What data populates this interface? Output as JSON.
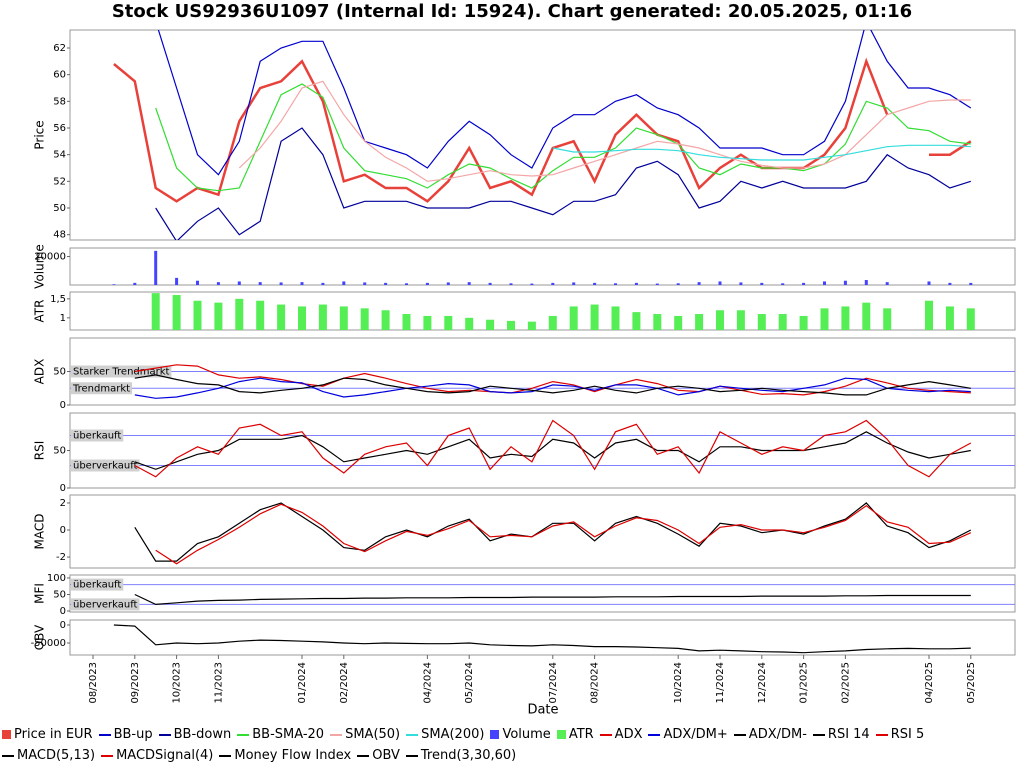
{
  "title": "Stock US92936U1097 (Internal Id: 15924). Chart generated: 20.05.2025, 01:16",
  "x_label": "Date",
  "categories": [
    "08/2023",
    null,
    "09/2023",
    null,
    "10/2023",
    null,
    "11/2023",
    null,
    null,
    null,
    "01/2024",
    null,
    "02/2024",
    null,
    null,
    null,
    "04/2024",
    null,
    "05/2024",
    null,
    null,
    null,
    "07/2024",
    null,
    "08/2024",
    null,
    null,
    null,
    "10/2024",
    null,
    "11/2024",
    null,
    "12/2024",
    null,
    "01/2025",
    null,
    "02/2025",
    null,
    null,
    null,
    "04/2025",
    null,
    "05/2025"
  ],
  "chart_data": [
    {
      "type": "line",
      "ylabel": "Price",
      "ylim": [
        47.6,
        63.35
      ],
      "yticks": [
        48,
        50,
        52,
        54,
        56,
        58,
        60,
        62
      ],
      "series": [
        {
          "name": "Price in EUR",
          "color": "#e8413a",
          "values": [
            null,
            60.8,
            59.5,
            51.5,
            50.5,
            51.5,
            51,
            56.5,
            59,
            59.5,
            61,
            58,
            52,
            52.5,
            51.5,
            51.5,
            50.5,
            52,
            54.5,
            51.5,
            52,
            51,
            54.5,
            55,
            52,
            55.5,
            57,
            55.5,
            55,
            51.5,
            53,
            54,
            53,
            53,
            53,
            54,
            56,
            61,
            57,
            null,
            54,
            54,
            55
          ]
        },
        {
          "name": "BB-up",
          "color": "#0000cc",
          "values": [
            null,
            null,
            null,
            64,
            59,
            54,
            52.5,
            55,
            61,
            62,
            62.5,
            62.5,
            59,
            55,
            54.5,
            54,
            53,
            55,
            56.5,
            55.5,
            54,
            53,
            56,
            57,
            57,
            58,
            58.5,
            57.5,
            57,
            56,
            54.5,
            54.5,
            54.5,
            54,
            54,
            55,
            58,
            64,
            61,
            59,
            59,
            58.5,
            57.5
          ]
        },
        {
          "name": "BB-down",
          "color": "#000099",
          "values": [
            null,
            null,
            null,
            50,
            47.5,
            49,
            50,
            48,
            49,
            55,
            56,
            54,
            50,
            50.5,
            50.5,
            50.5,
            50,
            50,
            50,
            50.5,
            50.5,
            50,
            49.5,
            50.5,
            50.5,
            51,
            53,
            53.5,
            52.5,
            50,
            50.5,
            52,
            51.5,
            52,
            51.5,
            51.5,
            51.5,
            52,
            54,
            53,
            52.5,
            51.5,
            52
          ]
        },
        {
          "name": "BB-SMA-20",
          "color": "#33dd33",
          "values": [
            null,
            null,
            null,
            57.5,
            53,
            51.5,
            51.3,
            51.5,
            55,
            58.5,
            59.3,
            58.3,
            54.5,
            52.8,
            52.5,
            52.2,
            51.5,
            52.5,
            53.3,
            53,
            52.2,
            51.5,
            52.8,
            53.8,
            53.8,
            54.5,
            56,
            55.5,
            54.8,
            53,
            52.5,
            53.3,
            53,
            53,
            52.8,
            53.3,
            54.8,
            58,
            57.5,
            56,
            55.8,
            55,
            54.8
          ]
        },
        {
          "name": "SMA(50)",
          "color": "#f4a6a6",
          "values": [
            null,
            null,
            null,
            null,
            null,
            null,
            null,
            53,
            54.5,
            56.5,
            59,
            59.5,
            57,
            55,
            53.8,
            53,
            52,
            52.2,
            52.5,
            52.8,
            52.5,
            52.4,
            52.5,
            53,
            53.5,
            54,
            54.5,
            55,
            54.8,
            54.5,
            54,
            53.5,
            53.2,
            53,
            53,
            53.3,
            54,
            55.5,
            57,
            57.5,
            58,
            58.1,
            58.1
          ]
        },
        {
          "name": "SMA(200)",
          "color": "#33dddd",
          "values": [
            null,
            null,
            null,
            null,
            null,
            null,
            null,
            null,
            null,
            null,
            null,
            null,
            null,
            null,
            null,
            null,
            null,
            null,
            null,
            null,
            null,
            null,
            54.5,
            54.2,
            54.2,
            54.3,
            54.4,
            54.4,
            54.3,
            54,
            53.8,
            53.7,
            53.6,
            53.6,
            53.6,
            53.8,
            54,
            54.3,
            54.6,
            54.7,
            54.7,
            54.7,
            54.6
          ]
        }
      ]
    },
    {
      "type": "bar",
      "ylabel": "Volume",
      "ylim": [
        0,
        26000
      ],
      "yticks": [
        20000
      ],
      "series": [
        {
          "name": "Volume",
          "color": "#4444ff",
          "values": [
            null,
            500,
            1500,
            24000,
            5000,
            3000,
            2000,
            2500,
            2000,
            1800,
            2000,
            1500,
            2500,
            1800,
            1500,
            1200,
            1500,
            1800,
            2000,
            1500,
            1200,
            1000,
            1500,
            1800,
            1500,
            1200,
            1500,
            1000,
            1200,
            2000,
            2500,
            1800,
            1500,
            1200,
            1500,
            2500,
            3000,
            3500,
            2000,
            null,
            2500,
            1500,
            1500
          ]
        }
      ]
    },
    {
      "type": "bar",
      "ylabel": "ATR",
      "ylim": [
        0.68,
        1.68
      ],
      "yticks": [
        1,
        {
          "value": 1.5,
          "label": "1,5"
        }
      ],
      "series": [
        {
          "name": "ATR",
          "color": "#55ee55",
          "values": [
            null,
            null,
            null,
            1.65,
            1.6,
            1.45,
            1.4,
            1.5,
            1.45,
            1.35,
            1.3,
            1.35,
            1.3,
            1.25,
            1.2,
            1.1,
            1.05,
            1.05,
            1.0,
            0.95,
            0.92,
            0.9,
            1.05,
            1.3,
            1.35,
            1.3,
            1.15,
            1.1,
            1.05,
            1.1,
            1.2,
            1.2,
            1.1,
            1.1,
            1.05,
            1.25,
            1.3,
            1.4,
            1.25,
            null,
            1.45,
            1.3,
            1.25
          ]
        }
      ]
    },
    {
      "type": "line",
      "ylabel": "ADX",
      "ylim": [
        0,
        100
      ],
      "yticks": [
        0,
        50
      ],
      "annotations": [
        {
          "text": "Starker Trendmarkt",
          "y": 50
        },
        {
          "text": "Trendmarkt",
          "y": 25
        }
      ],
      "series": [
        {
          "name": "ADX",
          "color": "#dd0000",
          "values": [
            null,
            null,
            50,
            55,
            60,
            58,
            45,
            40,
            42,
            38,
            32,
            28,
            40,
            47,
            40,
            32,
            25,
            20,
            22,
            20,
            18,
            25,
            35,
            30,
            20,
            30,
            38,
            32,
            22,
            20,
            28,
            22,
            16,
            17,
            15,
            20,
            28,
            40,
            33,
            25,
            22,
            20,
            18
          ]
        },
        {
          "name": "ADX/DM+",
          "color": "#0000dd",
          "values": [
            null,
            null,
            15,
            10,
            12,
            18,
            25,
            35,
            40,
            35,
            33,
            20,
            12,
            15,
            20,
            25,
            28,
            32,
            30,
            20,
            18,
            20,
            30,
            28,
            22,
            30,
            30,
            25,
            15,
            20,
            28,
            25,
            22,
            20,
            25,
            30,
            40,
            38,
            25,
            22,
            20,
            22,
            20
          ]
        },
        {
          "name": "ADX/DM-",
          "color": "#000000",
          "values": [
            null,
            null,
            40,
            45,
            38,
            32,
            30,
            20,
            18,
            22,
            25,
            30,
            40,
            38,
            30,
            25,
            20,
            18,
            20,
            28,
            25,
            22,
            18,
            22,
            28,
            22,
            18,
            25,
            28,
            25,
            20,
            22,
            25,
            22,
            20,
            18,
            15,
            15,
            25,
            30,
            35,
            30,
            25
          ]
        }
      ]
    },
    {
      "type": "line",
      "ylabel": "RSI",
      "ylim": [
        0,
        100
      ],
      "yticks": [
        0,
        50
      ],
      "annotations": [
        {
          "text": "überkauft",
          "y": 70
        },
        {
          "text": "überverkauft",
          "y": 30
        }
      ],
      "series": [
        {
          "name": "RSI 14",
          "color": "#000000",
          "values": [
            null,
            null,
            35,
            25,
            35,
            45,
            50,
            65,
            65,
            65,
            70,
            55,
            35,
            40,
            45,
            50,
            45,
            55,
            65,
            40,
            45,
            42,
            65,
            60,
            40,
            60,
            65,
            50,
            50,
            35,
            55,
            55,
            50,
            50,
            50,
            55,
            60,
            75,
            60,
            48,
            40,
            45,
            50
          ]
        },
        {
          "name": "RSI 5",
          "color": "#dd0000",
          "values": [
            null,
            null,
            30,
            15,
            40,
            55,
            45,
            80,
            85,
            70,
            75,
            40,
            20,
            45,
            55,
            60,
            30,
            70,
            80,
            25,
            55,
            35,
            90,
            70,
            25,
            75,
            85,
            45,
            55,
            20,
            75,
            60,
            45,
            55,
            50,
            70,
            75,
            90,
            65,
            30,
            15,
            45,
            60
          ]
        }
      ]
    },
    {
      "type": "line",
      "ylabel": "MACD",
      "ylim": [
        -2.81,
        2.59
      ],
      "yticks": [
        -2,
        0,
        2
      ],
      "series": [
        {
          "name": "MACD(5,13)",
          "color": "#000000",
          "values": [
            null,
            null,
            0.2,
            -2.3,
            -2.3,
            -1,
            -0.5,
            0.5,
            1.5,
            2,
            1,
            0,
            -1.3,
            -1.5,
            -0.5,
            0,
            -0.5,
            0.3,
            0.8,
            -0.8,
            -0.3,
            -0.5,
            0.5,
            0.5,
            -0.8,
            0.5,
            1,
            0.5,
            -0.3,
            -1.2,
            0.5,
            0.3,
            -0.2,
            0,
            -0.3,
            0.3,
            0.8,
            2,
            0.3,
            -0.2,
            -1.3,
            -0.8,
            0
          ]
        },
        {
          "name": "MACDSignal(4)",
          "color": "#dd0000",
          "values": [
            null,
            null,
            null,
            -1.5,
            -2.5,
            -1.5,
            -0.7,
            0.2,
            1.2,
            1.9,
            1.3,
            0.3,
            -1,
            -1.6,
            -0.8,
            -0.1,
            -0.4,
            0.1,
            0.7,
            -0.5,
            -0.4,
            -0.5,
            0.3,
            0.6,
            -0.5,
            0.3,
            0.9,
            0.7,
            0,
            -1,
            0.2,
            0.4,
            0,
            0,
            -0.2,
            0.2,
            0.7,
            1.8,
            0.6,
            0.2,
            -1,
            -0.9,
            -0.2
          ]
        }
      ]
    },
    {
      "type": "line",
      "ylabel": "MFI",
      "ylim": [
        -3,
        109
      ],
      "yticks": [
        0,
        50,
        100
      ],
      "annotations": [
        {
          "text": "überkauft",
          "y": 80
        },
        {
          "text": "überverkauft",
          "y": 20
        }
      ],
      "series": [
        {
          "name": "Money Flow Index",
          "color": "#000000",
          "values": [
            null,
            null,
            50,
            20,
            25,
            30,
            32,
            33,
            35,
            36,
            37,
            38,
            38,
            39,
            39,
            40,
            40,
            40,
            41,
            41,
            41,
            42,
            42,
            42,
            42,
            43,
            43,
            43,
            44,
            44,
            44,
            44,
            45,
            45,
            45,
            45,
            46,
            46,
            47,
            47,
            47,
            47,
            47
          ]
        }
      ]
    },
    {
      "type": "line",
      "ylabel": "OBV",
      "ylim": [
        -83300,
        13900
      ],
      "yticks": [
        -50000,
        0
      ],
      "series": [
        {
          "name": "OBV",
          "color": "#000000",
          "values": [
            null,
            0,
            -3000,
            -55000,
            -50000,
            -52000,
            -50000,
            -45000,
            -42000,
            -43000,
            -45000,
            -47000,
            -50000,
            -52000,
            -50000,
            -51000,
            -52000,
            -52000,
            -50000,
            -55000,
            -57000,
            -58000,
            -55000,
            -57000,
            -60000,
            -60000,
            -61000,
            -63000,
            -65000,
            -72000,
            -70000,
            -72000,
            -74000,
            -75000,
            -77000,
            -74000,
            -72000,
            -68000,
            -66000,
            -65000,
            -66000,
            -66000,
            -64000
          ]
        },
        {
          "name": "Trend(3,30,60)",
          "color": "#000000",
          "values": [
            null,
            null,
            null,
            null,
            null,
            null,
            null,
            null,
            null,
            null,
            null,
            null,
            null,
            null,
            null,
            null,
            null,
            null,
            null,
            null,
            null,
            null,
            null,
            null,
            null,
            null,
            null,
            null,
            null,
            null,
            null,
            null,
            null,
            null,
            null,
            null,
            null,
            null,
            null,
            null,
            null,
            null,
            null
          ]
        }
      ]
    }
  ]
}
